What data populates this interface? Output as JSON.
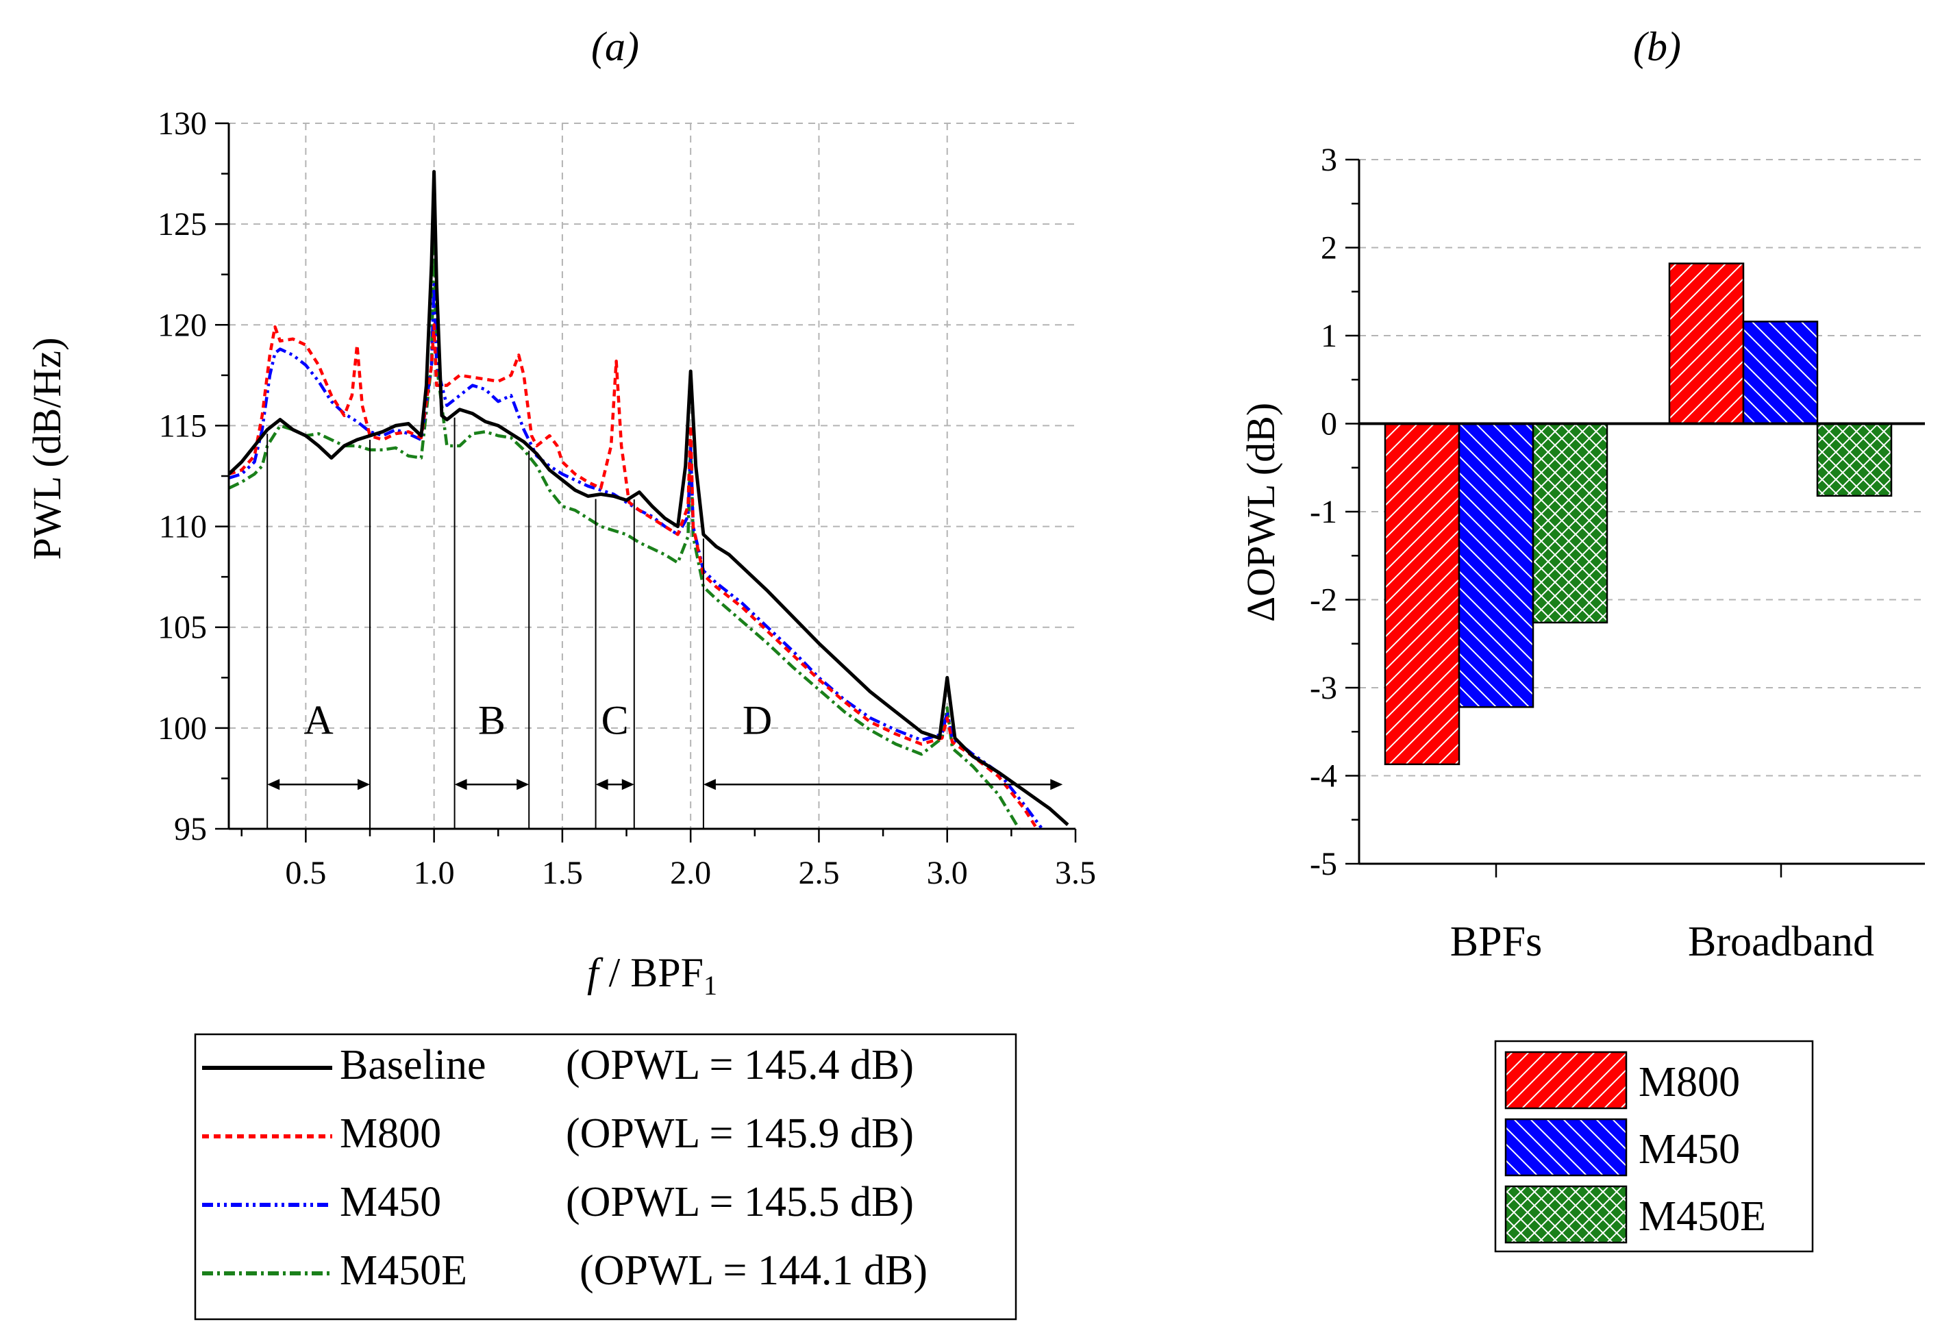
{
  "colors": {
    "baseline": "#000000",
    "m800": "#ff0000",
    "m450": "#0000ff",
    "m450e": "#1a801a",
    "grid": "#b4b4b4"
  },
  "chart_data": [
    {
      "type": "line",
      "panel_label": "(a)",
      "xlabel_f": "f",
      "xlabel_rest": " / BPF",
      "xlabel_sub": "1",
      "ylabel": "PWL (dB/Hz)",
      "xlim": [
        0.2,
        3.5
      ],
      "ylim": [
        95,
        130
      ],
      "x_ticks": [
        "0.5",
        "1.0",
        "1.5",
        "2.0",
        "2.5",
        "3.0",
        "3.5"
      ],
      "x_tick_values": [
        0.5,
        1.0,
        1.5,
        2.0,
        2.5,
        3.0,
        3.5
      ],
      "y_ticks": [
        "95",
        "100",
        "105",
        "110",
        "115",
        "120",
        "125",
        "130"
      ],
      "y_tick_values": [
        95,
        100,
        105,
        110,
        115,
        120,
        125,
        130
      ],
      "grid": true,
      "legend_position": "bottom",
      "series": [
        {
          "name": "Baseline",
          "legend_note": "(OPWL = 145.4 dB)",
          "x": [
            0.2,
            0.25,
            0.3,
            0.35,
            0.4,
            0.45,
            0.5,
            0.55,
            0.6,
            0.65,
            0.7,
            0.75,
            0.8,
            0.85,
            0.9,
            0.95,
            0.97,
            0.99,
            1.0,
            1.01,
            1.03,
            1.05,
            1.1,
            1.15,
            1.2,
            1.25,
            1.3,
            1.35,
            1.4,
            1.45,
            1.5,
            1.55,
            1.6,
            1.65,
            1.7,
            1.75,
            1.8,
            1.85,
            1.9,
            1.95,
            1.98,
            2.0,
            2.02,
            2.05,
            2.1,
            2.15,
            2.2,
            2.3,
            2.4,
            2.5,
            2.6,
            2.7,
            2.8,
            2.9,
            2.97,
            3.0,
            3.03,
            3.1,
            3.2,
            3.3,
            3.4,
            3.47
          ],
          "y": [
            112.6,
            113.2,
            114.0,
            114.8,
            115.3,
            114.8,
            114.5,
            114.0,
            113.4,
            114.0,
            114.3,
            114.5,
            114.7,
            115.0,
            115.1,
            114.5,
            117.0,
            123.0,
            127.6,
            122.0,
            115.5,
            115.3,
            115.8,
            115.6,
            115.2,
            115.0,
            114.6,
            114.2,
            113.6,
            112.8,
            112.3,
            111.8,
            111.5,
            111.6,
            111.5,
            111.3,
            111.7,
            111.0,
            110.4,
            110.0,
            113.0,
            117.7,
            113.0,
            109.6,
            109.0,
            108.6,
            108.0,
            106.8,
            105.5,
            104.2,
            103.0,
            101.8,
            100.8,
            99.8,
            99.5,
            102.5,
            99.5,
            98.6,
            97.8,
            96.9,
            96.0,
            95.2
          ]
        },
        {
          "name": "M800",
          "legend_note": "(OPWL = 145.9 dB)",
          "x": [
            0.2,
            0.25,
            0.3,
            0.33,
            0.36,
            0.38,
            0.4,
            0.45,
            0.5,
            0.55,
            0.6,
            0.65,
            0.68,
            0.7,
            0.72,
            0.75,
            0.8,
            0.85,
            0.9,
            0.95,
            0.99,
            1.0,
            1.01,
            1.05,
            1.1,
            1.15,
            1.2,
            1.25,
            1.3,
            1.33,
            1.35,
            1.38,
            1.4,
            1.45,
            1.48,
            1.5,
            1.55,
            1.6,
            1.65,
            1.69,
            1.71,
            1.73,
            1.76,
            1.8,
            1.85,
            1.9,
            1.95,
            1.99,
            2.0,
            2.01,
            2.05,
            2.1,
            2.2,
            2.3,
            2.4,
            2.5,
            2.6,
            2.7,
            2.8,
            2.9,
            2.98,
            3.0,
            3.02,
            3.1,
            3.2,
            3.3,
            3.35
          ],
          "y": [
            112.6,
            112.8,
            113.5,
            115.5,
            118.5,
            119.9,
            119.2,
            119.3,
            119.0,
            118.0,
            116.5,
            115.5,
            116.5,
            119.0,
            116.0,
            114.5,
            114.3,
            114.6,
            114.7,
            114.4,
            118.0,
            120.0,
            117.0,
            117.0,
            117.5,
            117.4,
            117.3,
            117.2,
            117.5,
            118.5,
            117.5,
            114.5,
            114.0,
            114.5,
            114.0,
            113.2,
            112.6,
            112.2,
            111.9,
            114.0,
            118.2,
            114.0,
            111.2,
            110.8,
            110.4,
            110.0,
            109.6,
            111.0,
            115.0,
            110.0,
            107.6,
            107.0,
            106.0,
            104.8,
            103.6,
            102.4,
            101.3,
            100.3,
            99.7,
            99.2,
            99.5,
            100.5,
            99.3,
            98.6,
            97.6,
            96.0,
            95.0
          ]
        },
        {
          "name": "M450",
          "legend_note": "(OPWL = 145.5 dB)",
          "x": [
            0.2,
            0.25,
            0.3,
            0.33,
            0.36,
            0.38,
            0.4,
            0.45,
            0.5,
            0.55,
            0.6,
            0.65,
            0.7,
            0.75,
            0.8,
            0.85,
            0.9,
            0.95,
            0.99,
            1.0,
            1.01,
            1.05,
            1.1,
            1.15,
            1.2,
            1.25,
            1.3,
            1.35,
            1.4,
            1.45,
            1.5,
            1.55,
            1.6,
            1.65,
            1.7,
            1.75,
            1.8,
            1.85,
            1.9,
            1.95,
            1.99,
            2.0,
            2.01,
            2.05,
            2.1,
            2.2,
            2.3,
            2.4,
            2.5,
            2.6,
            2.7,
            2.8,
            2.9,
            2.98,
            3.0,
            3.02,
            3.1,
            3.2,
            3.3,
            3.37
          ],
          "y": [
            112.4,
            112.6,
            113.2,
            114.8,
            117.5,
            118.6,
            118.8,
            118.5,
            118.0,
            117.2,
            116.2,
            115.6,
            115.2,
            114.7,
            114.5,
            114.8,
            114.6,
            114.3,
            118.0,
            122.0,
            118.0,
            116.0,
            116.5,
            117.0,
            116.8,
            116.2,
            116.5,
            114.8,
            113.5,
            113.0,
            112.6,
            112.3,
            112.0,
            111.8,
            111.6,
            111.2,
            110.8,
            110.5,
            110.0,
            109.6,
            110.5,
            114.0,
            110.0,
            107.8,
            107.2,
            106.2,
            105.0,
            103.8,
            102.5,
            101.4,
            100.5,
            99.9,
            99.4,
            99.7,
            100.8,
            99.5,
            98.7,
            97.8,
            96.2,
            95.0
          ]
        },
        {
          "name": "M450E",
          "legend_note": "(OPWL = 144.1 dB)",
          "x": [
            0.2,
            0.25,
            0.3,
            0.33,
            0.35,
            0.4,
            0.45,
            0.5,
            0.55,
            0.6,
            0.65,
            0.7,
            0.75,
            0.8,
            0.85,
            0.9,
            0.95,
            0.99,
            1.0,
            1.01,
            1.05,
            1.1,
            1.15,
            1.2,
            1.25,
            1.3,
            1.35,
            1.4,
            1.45,
            1.5,
            1.55,
            1.6,
            1.65,
            1.7,
            1.75,
            1.8,
            1.85,
            1.9,
            1.95,
            1.99,
            2.0,
            2.01,
            2.05,
            2.1,
            2.2,
            2.3,
            2.4,
            2.5,
            2.6,
            2.7,
            2.8,
            2.9,
            2.98,
            3.0,
            3.02,
            3.1,
            3.2,
            3.28
          ],
          "y": [
            111.9,
            112.2,
            112.6,
            113.0,
            114.0,
            115.0,
            114.8,
            114.5,
            114.6,
            114.3,
            114.0,
            114.0,
            113.8,
            113.8,
            113.9,
            113.5,
            113.4,
            118.0,
            125.0,
            118.0,
            114.0,
            114.0,
            114.6,
            114.7,
            114.5,
            114.4,
            113.8,
            113.0,
            111.8,
            111.0,
            110.8,
            110.4,
            110.0,
            109.8,
            109.6,
            109.2,
            108.9,
            108.6,
            108.2,
            109.5,
            114.2,
            109.5,
            107.0,
            106.4,
            105.3,
            104.2,
            103.0,
            101.9,
            100.8,
            99.9,
            99.2,
            98.7,
            99.5,
            101.0,
            99.0,
            98.1,
            96.7,
            95.0
          ]
        }
      ],
      "annotations": [
        {
          "label": "A",
          "x_start": 0.35,
          "x_end": 0.75
        },
        {
          "label": "B",
          "x_start": 1.08,
          "x_end": 1.37
        },
        {
          "label": "C",
          "x_start": 1.63,
          "x_end": 1.78
        },
        {
          "label": "D",
          "x_start": 2.05,
          "x_end": 3.45
        }
      ]
    },
    {
      "type": "bar",
      "panel_label": "(b)",
      "ylabel": "ΔOPWL (dB)",
      "categories": [
        "BPFs",
        "Broadband"
      ],
      "ylim": [
        -5,
        3
      ],
      "y_ticks": [
        "-5",
        "-4",
        "-3",
        "-2",
        "-1",
        "0",
        "1",
        "2",
        "3"
      ],
      "y_tick_values": [
        -5,
        -4,
        -3,
        -2,
        -1,
        0,
        1,
        2,
        3
      ],
      "grid": true,
      "legend_position": "bottom",
      "series": [
        {
          "name": "M800",
          "values": [
            -3.87,
            1.82
          ]
        },
        {
          "name": "M450",
          "values": [
            -3.22,
            1.16
          ]
        },
        {
          "name": "M450E",
          "values": [
            -2.26,
            -0.82
          ]
        }
      ]
    }
  ]
}
